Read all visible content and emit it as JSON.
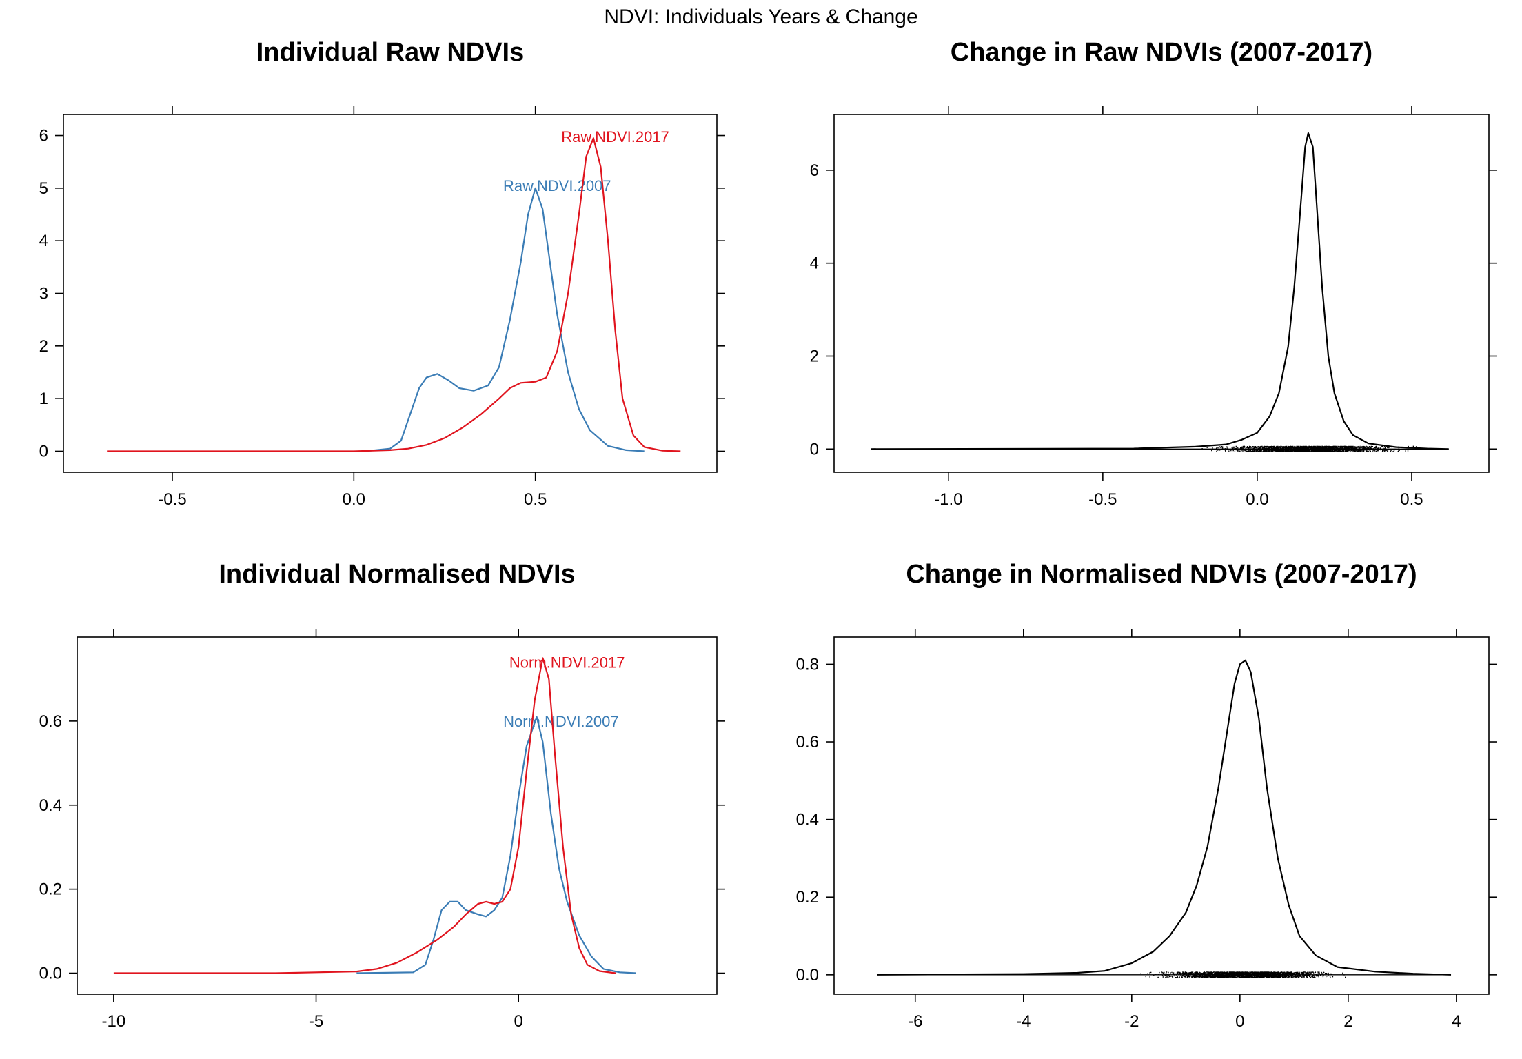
{
  "title": "NDVI: Individuals Years & Change",
  "colors": {
    "blue": "#3a7cb5",
    "red": "#e0141e",
    "black": "#000000"
  },
  "chart_data": [
    {
      "type": "line",
      "subtype": "density",
      "title": "Individual Raw NDVIs",
      "xlim": [
        -0.8,
        1.0
      ],
      "ylim": [
        -0.4,
        6.4
      ],
      "xticks": [
        -0.5,
        0.0,
        0.5
      ],
      "xtick_labels": [
        "-0.5",
        "0.0",
        "0.5"
      ],
      "yticks": [
        0,
        1,
        2,
        3,
        4,
        5,
        6
      ],
      "ytick_labels": [
        "0",
        "1",
        "2",
        "3",
        "4",
        "5",
        "6"
      ],
      "series": [
        {
          "name": "Raw.NDVI.2007",
          "color": "#3a7cb5",
          "label_at": [
            0.56,
            5.05
          ],
          "points": [
            [
              0.03,
              0
            ],
            [
              0.1,
              0.05
            ],
            [
              0.13,
              0.2
            ],
            [
              0.16,
              0.8
            ],
            [
              0.18,
              1.2
            ],
            [
              0.2,
              1.4
            ],
            [
              0.23,
              1.47
            ],
            [
              0.26,
              1.35
            ],
            [
              0.29,
              1.2
            ],
            [
              0.33,
              1.15
            ],
            [
              0.37,
              1.25
            ],
            [
              0.4,
              1.6
            ],
            [
              0.43,
              2.5
            ],
            [
              0.46,
              3.6
            ],
            [
              0.48,
              4.5
            ],
            [
              0.5,
              5.0
            ],
            [
              0.52,
              4.6
            ],
            [
              0.54,
              3.6
            ],
            [
              0.56,
              2.6
            ],
            [
              0.59,
              1.5
            ],
            [
              0.62,
              0.8
            ],
            [
              0.65,
              0.4
            ],
            [
              0.7,
              0.1
            ],
            [
              0.75,
              0.02
            ],
            [
              0.8,
              0
            ]
          ]
        },
        {
          "name": "Raw.NDVI.2017",
          "color": "#e0141e",
          "label_at": [
            0.72,
            5.98
          ],
          "points": [
            [
              -0.68,
              0
            ],
            [
              0.0,
              0
            ],
            [
              0.1,
              0.02
            ],
            [
              0.15,
              0.05
            ],
            [
              0.2,
              0.12
            ],
            [
              0.25,
              0.25
            ],
            [
              0.3,
              0.45
            ],
            [
              0.35,
              0.7
            ],
            [
              0.4,
              1.0
            ],
            [
              0.43,
              1.2
            ],
            [
              0.46,
              1.3
            ],
            [
              0.5,
              1.32
            ],
            [
              0.53,
              1.4
            ],
            [
              0.56,
              1.9
            ],
            [
              0.59,
              3.0
            ],
            [
              0.62,
              4.5
            ],
            [
              0.64,
              5.6
            ],
            [
              0.66,
              5.95
            ],
            [
              0.68,
              5.4
            ],
            [
              0.7,
              4.0
            ],
            [
              0.72,
              2.3
            ],
            [
              0.74,
              1.0
            ],
            [
              0.77,
              0.3
            ],
            [
              0.8,
              0.08
            ],
            [
              0.85,
              0.01
            ],
            [
              0.9,
              0
            ]
          ]
        }
      ]
    },
    {
      "type": "line",
      "subtype": "density",
      "title": "Change in Raw NDVIs (2007-2017)",
      "xlim": [
        -1.37,
        0.75
      ],
      "ylim": [
        -0.5,
        7.2
      ],
      "xticks": [
        -1.0,
        -0.5,
        0.0,
        0.5
      ],
      "xtick_labels": [
        "-1.0",
        "-0.5",
        "0.0",
        "0.5"
      ],
      "yticks": [
        0,
        2,
        4,
        6
      ],
      "ytick_labels": [
        "0",
        "2",
        "4",
        "6"
      ],
      "rug": {
        "from": -1.25,
        "to": 0.62,
        "dense_from": -0.55
      },
      "series": [
        {
          "name": "",
          "color": "#000000",
          "points": [
            [
              -1.25,
              0
            ],
            [
              -0.4,
              0.01
            ],
            [
              -0.2,
              0.05
            ],
            [
              -0.1,
              0.1
            ],
            [
              -0.05,
              0.2
            ],
            [
              0.0,
              0.35
            ],
            [
              0.04,
              0.7
            ],
            [
              0.07,
              1.2
            ],
            [
              0.1,
              2.2
            ],
            [
              0.12,
              3.5
            ],
            [
              0.14,
              5.2
            ],
            [
              0.155,
              6.5
            ],
            [
              0.165,
              6.8
            ],
            [
              0.18,
              6.5
            ],
            [
              0.19,
              5.5
            ],
            [
              0.21,
              3.5
            ],
            [
              0.23,
              2.0
            ],
            [
              0.25,
              1.2
            ],
            [
              0.28,
              0.6
            ],
            [
              0.31,
              0.3
            ],
            [
              0.36,
              0.12
            ],
            [
              0.45,
              0.04
            ],
            [
              0.55,
              0.01
            ],
            [
              0.62,
              0
            ]
          ]
        }
      ]
    },
    {
      "type": "line",
      "subtype": "density",
      "title": "Individual Normalised NDVIs",
      "xlim": [
        -10.9,
        4.9
      ],
      "ylim": [
        -0.05,
        0.8
      ],
      "xticks": [
        -10,
        -5,
        0
      ],
      "xtick_labels": [
        "-10",
        "-5",
        "0"
      ],
      "yticks": [
        0.0,
        0.2,
        0.4,
        0.6
      ],
      "ytick_labels": [
        "0.0",
        "0.2",
        "0.4",
        "0.6"
      ],
      "series": [
        {
          "name": "Norm.NDVI.2007",
          "color": "#3a7cb5",
          "label_at": [
            1.05,
            0.6
          ],
          "points": [
            [
              -4.0,
              0
            ],
            [
              -2.6,
              0.002
            ],
            [
              -2.3,
              0.02
            ],
            [
              -2.1,
              0.08
            ],
            [
              -1.9,
              0.15
            ],
            [
              -1.7,
              0.17
            ],
            [
              -1.5,
              0.17
            ],
            [
              -1.3,
              0.15
            ],
            [
              -1.0,
              0.14
            ],
            [
              -0.8,
              0.135
            ],
            [
              -0.6,
              0.15
            ],
            [
              -0.4,
              0.18
            ],
            [
              -0.2,
              0.28
            ],
            [
              0.0,
              0.42
            ],
            [
              0.2,
              0.54
            ],
            [
              0.45,
              0.61
            ],
            [
              0.6,
              0.55
            ],
            [
              0.8,
              0.38
            ],
            [
              1.0,
              0.25
            ],
            [
              1.2,
              0.17
            ],
            [
              1.5,
              0.09
            ],
            [
              1.8,
              0.04
            ],
            [
              2.1,
              0.01
            ],
            [
              2.5,
              0.002
            ],
            [
              2.9,
              0
            ]
          ]
        },
        {
          "name": "Norm.NDVI.2017",
          "color": "#e0141e",
          "label_at": [
            1.2,
            0.74
          ],
          "points": [
            [
              -10.0,
              0
            ],
            [
              -6.0,
              0
            ],
            [
              -5.0,
              0.002
            ],
            [
              -4.0,
              0.004
            ],
            [
              -3.5,
              0.01
            ],
            [
              -3.0,
              0.025
            ],
            [
              -2.5,
              0.05
            ],
            [
              -2.0,
              0.08
            ],
            [
              -1.6,
              0.11
            ],
            [
              -1.3,
              0.14
            ],
            [
              -1.0,
              0.165
            ],
            [
              -0.8,
              0.17
            ],
            [
              -0.6,
              0.165
            ],
            [
              -0.4,
              0.17
            ],
            [
              -0.2,
              0.2
            ],
            [
              0.0,
              0.3
            ],
            [
              0.2,
              0.48
            ],
            [
              0.4,
              0.65
            ],
            [
              0.6,
              0.75
            ],
            [
              0.75,
              0.7
            ],
            [
              0.9,
              0.52
            ],
            [
              1.1,
              0.3
            ],
            [
              1.3,
              0.14
            ],
            [
              1.5,
              0.06
            ],
            [
              1.7,
              0.02
            ],
            [
              2.0,
              0.005
            ],
            [
              2.4,
              0
            ]
          ]
        }
      ]
    },
    {
      "type": "line",
      "subtype": "density",
      "title": "Change in Normalised NDVIs (2007-2017)",
      "xlim": [
        -7.5,
        4.6
      ],
      "ylim": [
        -0.05,
        0.87
      ],
      "xticks": [
        -6,
        -4,
        -2,
        0,
        2,
        4
      ],
      "xtick_labels": [
        "-6",
        "-4",
        "-2",
        "0",
        "2",
        "4"
      ],
      "yticks": [
        0.0,
        0.2,
        0.4,
        0.6,
        0.8
      ],
      "ytick_labels": [
        "0.0",
        "0.2",
        "0.4",
        "0.6",
        "0.8"
      ],
      "rug": {
        "from": -6.7,
        "to": 3.9,
        "dense_from": -5.5
      },
      "series": [
        {
          "name": "",
          "color": "#000000",
          "points": [
            [
              -6.7,
              0
            ],
            [
              -4.0,
              0.002
            ],
            [
              -3.0,
              0.005
            ],
            [
              -2.5,
              0.01
            ],
            [
              -2.0,
              0.03
            ],
            [
              -1.6,
              0.06
            ],
            [
              -1.3,
              0.1
            ],
            [
              -1.0,
              0.16
            ],
            [
              -0.8,
              0.23
            ],
            [
              -0.6,
              0.33
            ],
            [
              -0.4,
              0.48
            ],
            [
              -0.2,
              0.66
            ],
            [
              -0.1,
              0.75
            ],
            [
              0.0,
              0.8
            ],
            [
              0.1,
              0.81
            ],
            [
              0.2,
              0.78
            ],
            [
              0.35,
              0.66
            ],
            [
              0.5,
              0.48
            ],
            [
              0.7,
              0.3
            ],
            [
              0.9,
              0.18
            ],
            [
              1.1,
              0.1
            ],
            [
              1.4,
              0.05
            ],
            [
              1.8,
              0.02
            ],
            [
              2.5,
              0.008
            ],
            [
              3.2,
              0.003
            ],
            [
              3.9,
              0
            ]
          ]
        }
      ]
    }
  ]
}
